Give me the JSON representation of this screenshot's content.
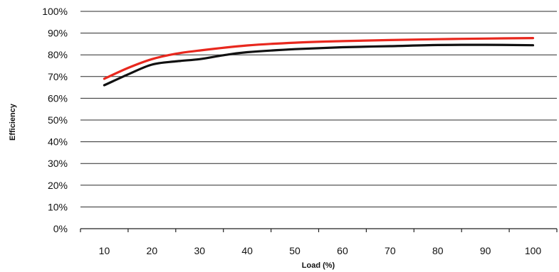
{
  "chart_data": {
    "type": "line",
    "title": "",
    "xlabel": "Load (%)",
    "ylabel": "Efficiency",
    "x_ticks": [
      "10",
      "20",
      "30",
      "40",
      "50",
      "60",
      "70",
      "80",
      "90",
      "100"
    ],
    "y_ticks": [
      "0%",
      "10%",
      "20%",
      "30%",
      "40%",
      "50%",
      "60%",
      "70%",
      "80%",
      "90%",
      "100%"
    ],
    "xlim": [
      5,
      105
    ],
    "ylim": [
      0,
      100
    ],
    "grid": "horizontal",
    "legend": "none",
    "series": [
      {
        "color": "#e8281e",
        "x": [
          10,
          15,
          20,
          25,
          30,
          40,
          50,
          60,
          70,
          80,
          90,
          100
        ],
        "y": [
          69,
          74,
          78,
          80.5,
          82,
          84.3,
          85.6,
          86.3,
          86.8,
          87.2,
          87.5,
          87.7
        ]
      },
      {
        "color": "#111111",
        "x": [
          10,
          15,
          20,
          25,
          30,
          35,
          40,
          50,
          60,
          70,
          80,
          90,
          100
        ],
        "y": [
          66,
          71,
          75.5,
          77,
          78,
          79.8,
          81.2,
          82.6,
          83.5,
          84,
          84.5,
          84.6,
          84.4
        ]
      }
    ]
  }
}
